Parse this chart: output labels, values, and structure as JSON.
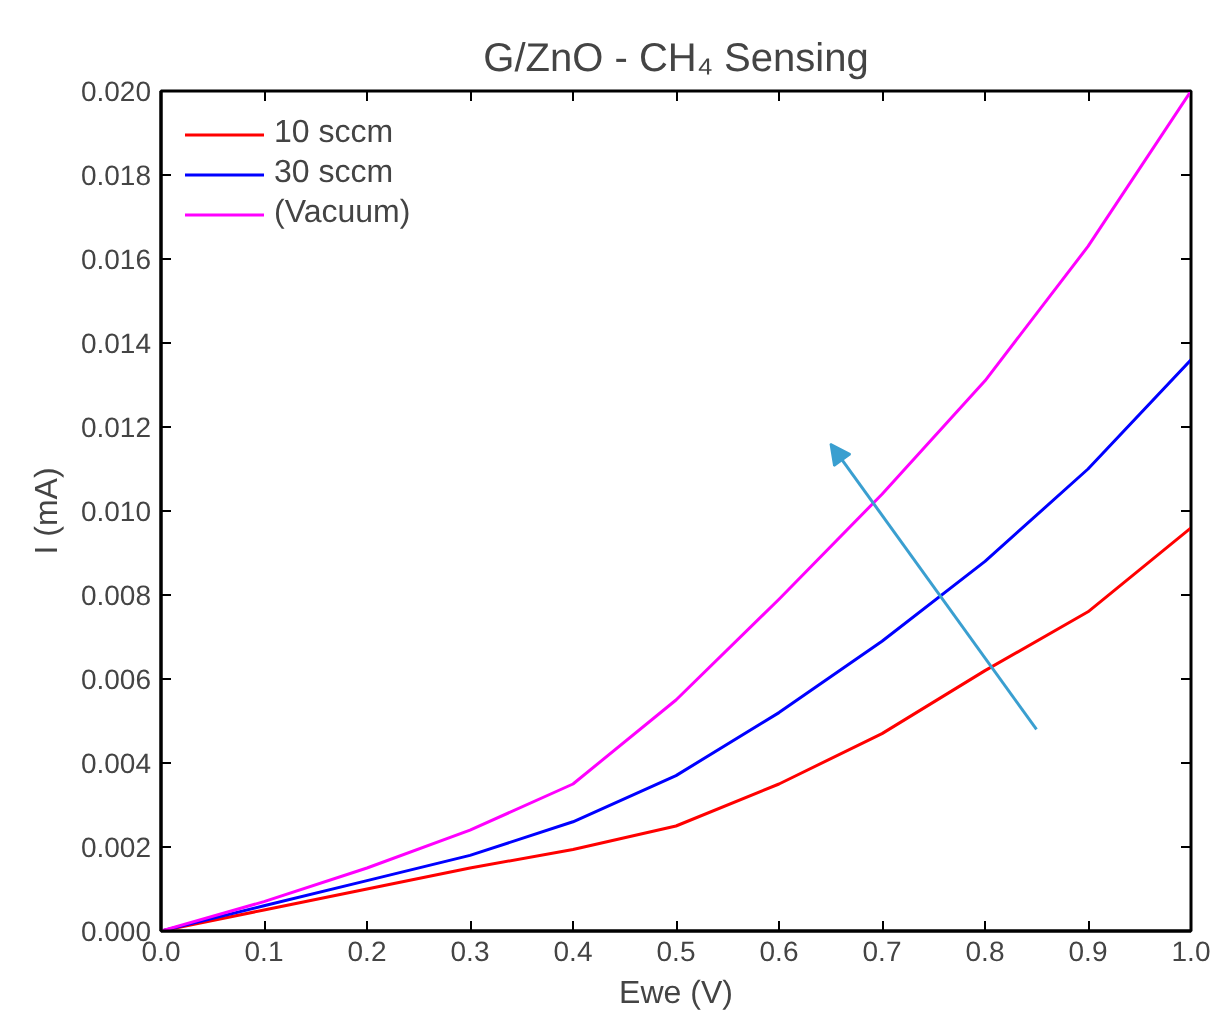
{
  "chart_data": {
    "type": "line",
    "title": "G/ZnO - CH₄ Sensing",
    "xlabel": "Ewe (V)",
    "ylabel": "I (mA)",
    "x": [
      0,
      0.1,
      0.2,
      0.3,
      0.4,
      0.5,
      0.6,
      0.7,
      0.8,
      0.9,
      1.0
    ],
    "series": [
      {
        "name": "10 sccm",
        "color": "#ff0000",
        "values": [
          0,
          0.0005,
          0.001,
          0.0015,
          0.00194,
          0.0025,
          0.0035,
          0.0047,
          0.0062,
          0.0076,
          0.0096
        ]
      },
      {
        "name": "30 sccm",
        "color": "#0000ff",
        "values": [
          0,
          0.0006,
          0.0012,
          0.0018,
          0.0026,
          0.0037,
          0.0052,
          0.0069,
          0.0088,
          0.011,
          0.0136
        ]
      },
      {
        "name": "(Vacuum)",
        "color": "#ff00ff",
        "values": [
          0,
          0.0007,
          0.0015,
          0.0024,
          0.0035,
          0.0055,
          0.0079,
          0.0104,
          0.0131,
          0.0163,
          0.02
        ]
      }
    ],
    "xlim": [
      0,
      1.0
    ],
    "ylim": [
      0,
      0.02
    ],
    "xticks": [
      {
        "value": 0,
        "label": "0.0"
      },
      0.1,
      0.2,
      0.3,
      0.4,
      0.5,
      0.6,
      0.7,
      0.8,
      0.9,
      {
        "value": 1.0,
        "label": "1.0"
      }
    ],
    "yticks": [
      {
        "value": 0,
        "label": "0.000"
      },
      {
        "value": 0.002,
        "label": "0.002"
      },
      {
        "value": 0.004,
        "label": "0.004"
      },
      {
        "value": 0.006,
        "label": "0.006"
      },
      {
        "value": 0.008,
        "label": "0.008"
      },
      {
        "value": 0.01,
        "label": "0.010"
      },
      {
        "value": 0.012,
        "label": "0.012"
      },
      {
        "value": 0.014,
        "label": "0.014"
      },
      {
        "value": 0.016,
        "label": "0.016"
      },
      {
        "value": 0.018,
        "label": "0.018"
      },
      {
        "value": 0.02,
        "label": "0.020"
      }
    ],
    "grid": false,
    "legend": "top left",
    "marker": "none",
    "line_style": "solid"
  }
}
